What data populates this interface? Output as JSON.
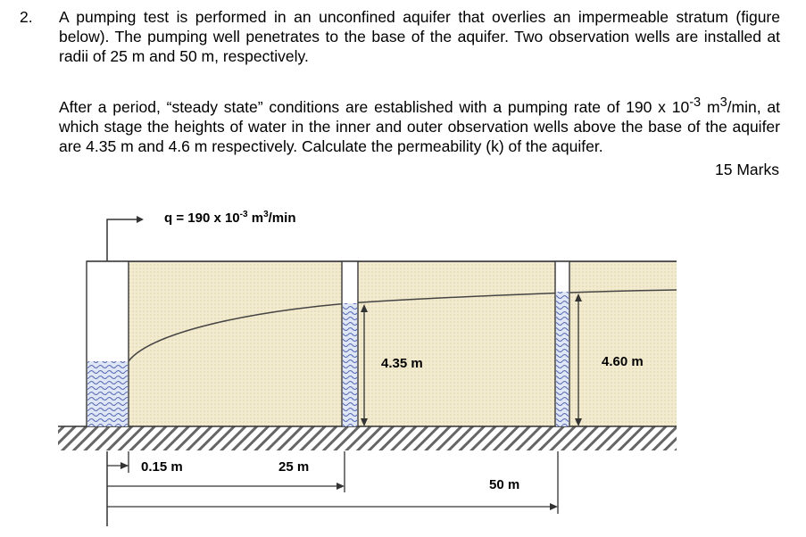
{
  "question": {
    "number": "2.",
    "paragraph1": "A pumping test is performed in an unconfined aquifer that overlies an impermeable stratum (figure below). The pumping well penetrates to the base of the aquifer. Two observation wells are installed at radii of 25 m and 50 m, respectively.",
    "paragraph2_a": "After a period, “steady state” conditions are established with a pumping rate of 190 x 10",
    "paragraph2_sup1": "-3",
    "paragraph2_b": "m",
    "paragraph2_sup2": "3",
    "paragraph2_c": "/min, at which stage the heights of water in the inner and outer observation wells above the base of the aquifer are 4.35 m and 4.6 m respectively. Calculate the permeability (k) of the aquifer.",
    "marks": "15 Marks"
  },
  "figure": {
    "flow_label": "q = 190 x 10",
    "flow_exp": "-3",
    "flow_unit": " m",
    "flow_unit_exp": "3",
    "flow_tail": "/min",
    "h1_label": "4.35 m",
    "h2_label": "4.60 m",
    "r0_label": "0.15 m",
    "r1_label": "25 m",
    "r2_label": "50 m"
  }
}
